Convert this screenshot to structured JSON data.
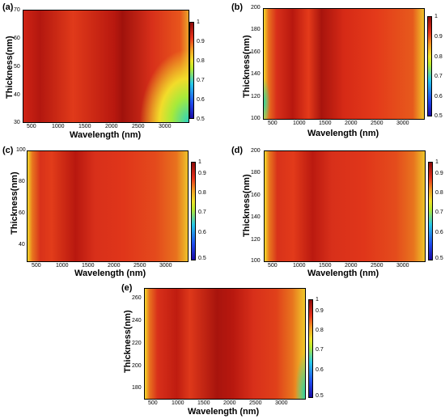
{
  "colorbar": {
    "ticks": [
      "1",
      "0.9",
      "0.8",
      "0.7",
      "0.6",
      "0.5"
    ],
    "range": [
      0.5,
      1
    ]
  },
  "chart_data": [
    {
      "type": "heatmap",
      "panel": "(a)",
      "xlabel": "Wavelength (nm)",
      "ylabel": "Thickness(nm)",
      "xticks": [
        "500",
        "1000",
        "1500",
        "2000",
        "2500",
        "3000"
      ],
      "yticks": [
        "70",
        "60",
        "50",
        "40",
        "30"
      ],
      "xlim": [
        300,
        3500
      ],
      "ylim": [
        30,
        70
      ]
    },
    {
      "type": "heatmap",
      "panel": "(b)",
      "xlabel": "Wavelength (nm)",
      "ylabel": "Thickness(nm)",
      "xticks": [
        "500",
        "1000",
        "1500",
        "2000",
        "2500",
        "3000"
      ],
      "yticks": [
        "200",
        "180",
        "160",
        "140",
        "120",
        "100"
      ],
      "xlim": [
        300,
        3500
      ],
      "ylim": [
        100,
        200
      ]
    },
    {
      "type": "heatmap",
      "panel": "(c)",
      "xlabel": "Wavelength (nm)",
      "ylabel": "Thickness(nm)",
      "xticks": [
        "500",
        "1000",
        "1500",
        "2000",
        "2500",
        "3000"
      ],
      "yticks": [
        "100",
        "80",
        "60",
        "40"
      ],
      "xlim": [
        300,
        3500
      ],
      "ylim": [
        30,
        100
      ]
    },
    {
      "type": "heatmap",
      "panel": "(d)",
      "xlabel": "Wavelength (nm)",
      "ylabel": "Thickness(nm)",
      "xticks": [
        "500",
        "1000",
        "1500",
        "2000",
        "2500",
        "3000"
      ],
      "yticks": [
        "200",
        "180",
        "160",
        "140",
        "120",
        "100"
      ],
      "xlim": [
        300,
        3500
      ],
      "ylim": [
        100,
        200
      ]
    },
    {
      "type": "heatmap",
      "panel": "(e)",
      "xlabel": "Wavelength (nm)",
      "ylabel": "Thickness(nm)",
      "xticks": [
        "500",
        "1000",
        "1500",
        "2000",
        "2500",
        "3000"
      ],
      "yticks": [
        "260",
        "240",
        "220",
        "200",
        "180"
      ],
      "xlim": [
        300,
        3500
      ],
      "ylim": [
        170,
        270
      ]
    }
  ]
}
